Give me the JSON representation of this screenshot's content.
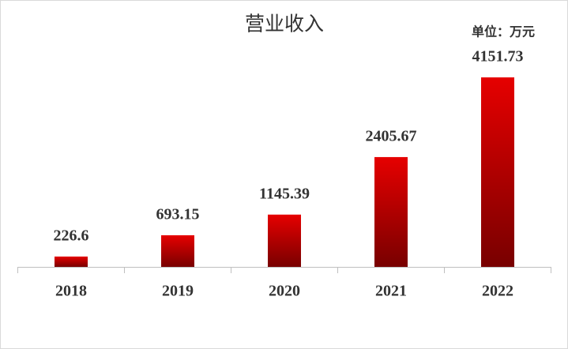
{
  "chart_data": {
    "type": "bar",
    "title": "营业收入",
    "subtitle": "单位：万元",
    "categories": [
      "2018",
      "2019",
      "2020",
      "2021",
      "2022"
    ],
    "values": [
      226.6,
      693.15,
      1145.39,
      2405.67,
      4151.73
    ],
    "color": "#e60000"
  }
}
